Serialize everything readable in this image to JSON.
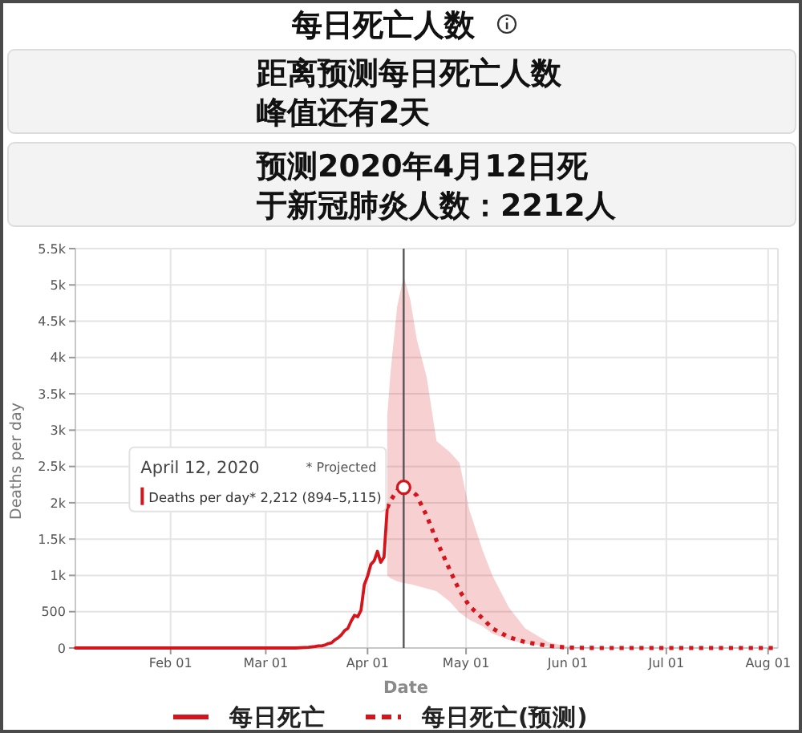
{
  "chart_data": {
    "type": "line",
    "title": "每日死亡人数",
    "annotations": [
      "距离预测每日死亡人数峰值还有2天",
      "预测2020年4月12日死于新冠肺炎人数：2212人",
      "April 12, 2020",
      "* Projected",
      {
        "text": "Deaths per day* 2,212 (894–5,115)",
        "x": "2020-04-12",
        "y": 2212
      }
    ],
    "xlabel": "Date",
    "ylabel": "Deaths per day",
    "xlim": [
      "2020-01-03",
      "2020-08-04"
    ],
    "xticks": [
      {
        "value": "2020-02-01",
        "label": "Feb 01"
      },
      {
        "value": "2020-03-01",
        "label": "Mar 01"
      },
      {
        "value": "2020-04-01",
        "label": "Apr 01"
      },
      {
        "value": "2020-05-01",
        "label": "May 01"
      },
      {
        "value": "2020-06-01",
        "label": "Jun 01"
      },
      {
        "value": "2020-07-01",
        "label": "Jul 01"
      },
      {
        "value": "2020-08-01",
        "label": "Aug 01"
      }
    ],
    "ylim": [
      0,
      5500
    ],
    "yticks": [
      0,
      500,
      {
        "value": 1000,
        "label": "1k"
      },
      {
        "value": 1500,
        "label": "1.5k"
      },
      {
        "value": 2000,
        "label": "2k"
      },
      {
        "value": 2500,
        "label": "2.5k"
      },
      {
        "value": 3000,
        "label": "3k"
      },
      {
        "value": 3500,
        "label": "3.5k"
      },
      {
        "value": 4000,
        "label": "4k"
      },
      {
        "value": 4500,
        "label": "4.5k"
      },
      {
        "value": 5000,
        "label": "5k"
      },
      {
        "value": 5500,
        "label": "5.5k"
      }
    ],
    "grid": true,
    "legend": "bottom",
    "ref_lines": [
      {
        "axis": "x",
        "value": "2020-04-12",
        "color": "#555555"
      }
    ],
    "series": [
      {
        "name": "每日死亡",
        "color": "#d6141c",
        "line_style": "solid",
        "x": [
          "2020-01-03",
          "2020-02-29",
          "2020-03-01",
          "2020-03-05",
          "2020-03-10",
          "2020-03-14",
          "2020-03-16",
          "2020-03-17",
          "2020-03-18",
          "2020-03-19",
          "2020-03-20",
          "2020-03-21",
          "2020-03-22",
          "2020-03-23",
          "2020-03-24",
          "2020-03-25",
          "2020-03-26",
          "2020-03-27",
          "2020-03-28",
          "2020-03-29",
          "2020-03-30",
          "2020-03-31",
          "2020-04-01",
          "2020-04-02",
          "2020-04-03",
          "2020-04-04",
          "2020-04-05",
          "2020-04-06",
          "2020-04-07"
        ],
        "values": [
          0,
          0,
          0,
          0,
          0,
          10,
          20,
          30,
          30,
          40,
          60,
          70,
          110,
          140,
          180,
          240,
          270,
          370,
          450,
          430,
          520,
          870,
          990,
          1150,
          1200,
          1330,
          1180,
          1250,
          1930
        ]
      },
      {
        "name": "每日死亡(预测)",
        "color": "#d6141c",
        "line_style": "dotted",
        "x": [
          "2020-04-07",
          "2020-04-08",
          "2020-04-10",
          "2020-04-12",
          "2020-04-14",
          "2020-04-16",
          "2020-04-19",
          "2020-04-22",
          "2020-04-26",
          "2020-04-29",
          "2020-05-02",
          "2020-05-06",
          "2020-05-09",
          "2020-05-14",
          "2020-05-19",
          "2020-05-26",
          "2020-06-01",
          "2020-06-10",
          "2020-08-04"
        ],
        "values": [
          1930,
          2030,
          2170,
          2212,
          2180,
          2100,
          1820,
          1480,
          1080,
          790,
          580,
          410,
          270,
          150,
          80,
          30,
          5,
          0,
          0
        ],
        "lower": [
          1000,
          960,
          920,
          894,
          880,
          856,
          820,
          780,
          640,
          490,
          390,
          300,
          200,
          110,
          60,
          20,
          0,
          0,
          0
        ],
        "upper": [
          3200,
          3800,
          4700,
          5115,
          4800,
          4250,
          3730,
          2850,
          2700,
          2550,
          1900,
          1350,
          1000,
          560,
          270,
          80,
          20,
          0,
          0
        ]
      }
    ]
  }
}
